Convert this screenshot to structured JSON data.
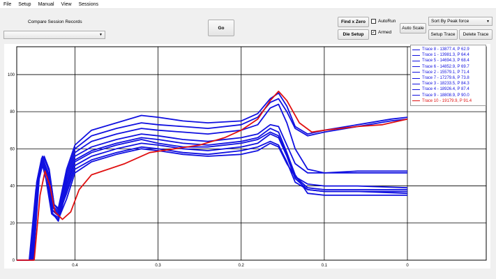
{
  "menu": [
    "File",
    "Setup",
    "Manual",
    "View",
    "Sessions"
  ],
  "toolbar": {
    "compare_label": "Compare Session Records",
    "session_select_value": "",
    "go_label": "Go",
    "find_zero_label": "Find x Zero",
    "die_setup_label": "Die Setup",
    "autorun_label": "AutoRun",
    "autorun_checked": false,
    "armed_label": "Armed",
    "armed_checked": true,
    "auto_scale_label": "Auto Scale",
    "sort_value": "Sort By Peak force",
    "setup_trace_label": "Setup Trace",
    "delete_trace_label": "Delete Trace"
  },
  "chart_data": {
    "type": "line",
    "xlim": [
      0.47,
      0.0
    ],
    "ylim": [
      0,
      115
    ],
    "x_ticks": [
      0.4,
      0.3,
      0.2,
      0.1,
      0
    ],
    "x_tick_labels": [
      "0.4",
      "0.3",
      "0.2",
      "0.1",
      "0"
    ],
    "y_ticks": [
      0,
      20,
      40,
      60,
      80,
      100
    ],
    "grid": true,
    "legend_placement": "top-right",
    "colors": {
      "blue": "#1010e0",
      "red": "#e01010"
    },
    "series": [
      {
        "name": "Trace 8 - 13877.4, P 62.9",
        "color": "#1010e0",
        "points": [
          [
            0.47,
            0
          ],
          [
            0.455,
            0
          ],
          [
            0.447,
            38
          ],
          [
            0.44,
            53
          ],
          [
            0.435,
            44
          ],
          [
            0.428,
            25
          ],
          [
            0.42,
            22
          ],
          [
            0.41,
            33
          ],
          [
            0.4,
            47
          ],
          [
            0.38,
            53
          ],
          [
            0.35,
            57
          ],
          [
            0.32,
            60
          ],
          [
            0.3,
            59
          ],
          [
            0.27,
            57
          ],
          [
            0.24,
            56
          ],
          [
            0.2,
            57
          ],
          [
            0.18,
            59
          ],
          [
            0.165,
            63
          ],
          [
            0.155,
            61
          ],
          [
            0.145,
            52
          ],
          [
            0.135,
            45
          ],
          [
            0.12,
            41
          ],
          [
            0.1,
            40
          ],
          [
            0.06,
            40
          ],
          [
            0.0,
            39
          ]
        ]
      },
      {
        "name": "Trace 1 - 13981.3, P 64.4",
        "color": "#1010e0",
        "points": [
          [
            0.47,
            0
          ],
          [
            0.454,
            0
          ],
          [
            0.446,
            40
          ],
          [
            0.44,
            54
          ],
          [
            0.434,
            46
          ],
          [
            0.428,
            27
          ],
          [
            0.42,
            24
          ],
          [
            0.41,
            36
          ],
          [
            0.4,
            49
          ],
          [
            0.38,
            54
          ],
          [
            0.35,
            58
          ],
          [
            0.32,
            61
          ],
          [
            0.3,
            60
          ],
          [
            0.27,
            58
          ],
          [
            0.24,
            57
          ],
          [
            0.2,
            59
          ],
          [
            0.18,
            61
          ],
          [
            0.165,
            64
          ],
          [
            0.155,
            62
          ],
          [
            0.145,
            53
          ],
          [
            0.135,
            42
          ],
          [
            0.12,
            38
          ],
          [
            0.1,
            37
          ],
          [
            0.06,
            37
          ],
          [
            0.0,
            36
          ]
        ]
      },
      {
        "name": "Trace 5 - 14694.3, P 68.4",
        "color": "#1010e0",
        "points": [
          [
            0.47,
            0
          ],
          [
            0.453,
            0
          ],
          [
            0.446,
            42
          ],
          [
            0.44,
            55
          ],
          [
            0.434,
            47
          ],
          [
            0.428,
            26
          ],
          [
            0.42,
            21
          ],
          [
            0.41,
            38
          ],
          [
            0.4,
            51
          ],
          [
            0.38,
            56
          ],
          [
            0.35,
            60
          ],
          [
            0.32,
            63
          ],
          [
            0.3,
            62
          ],
          [
            0.27,
            60
          ],
          [
            0.24,
            59
          ],
          [
            0.2,
            61
          ],
          [
            0.18,
            63
          ],
          [
            0.165,
            68
          ],
          [
            0.155,
            66
          ],
          [
            0.145,
            56
          ],
          [
            0.135,
            44
          ],
          [
            0.12,
            38
          ],
          [
            0.1,
            37
          ],
          [
            0.06,
            37
          ],
          [
            0.0,
            37
          ]
        ]
      },
      {
        "name": "Trace 6 - 14852.9, P 69.7",
        "color": "#1010e0",
        "points": [
          [
            0.47,
            0
          ],
          [
            0.452,
            0
          ],
          [
            0.445,
            41
          ],
          [
            0.439,
            52
          ],
          [
            0.433,
            45
          ],
          [
            0.427,
            25
          ],
          [
            0.42,
            23
          ],
          [
            0.41,
            40
          ],
          [
            0.4,
            53
          ],
          [
            0.38,
            58
          ],
          [
            0.35,
            62
          ],
          [
            0.32,
            65
          ],
          [
            0.3,
            63
          ],
          [
            0.27,
            61
          ],
          [
            0.24,
            61
          ],
          [
            0.2,
            63
          ],
          [
            0.18,
            65
          ],
          [
            0.165,
            69
          ],
          [
            0.155,
            67
          ],
          [
            0.145,
            57
          ],
          [
            0.135,
            45
          ],
          [
            0.12,
            39
          ],
          [
            0.1,
            38
          ],
          [
            0.06,
            38
          ],
          [
            0.0,
            38
          ]
        ]
      },
      {
        "name": "Trace 2 - 15579.1, P 71.4",
        "color": "#1010e0",
        "points": [
          [
            0.47,
            0
          ],
          [
            0.452,
            0
          ],
          [
            0.445,
            44
          ],
          [
            0.439,
            56
          ],
          [
            0.433,
            47
          ],
          [
            0.427,
            27
          ],
          [
            0.42,
            24
          ],
          [
            0.41,
            41
          ],
          [
            0.4,
            54
          ],
          [
            0.38,
            59
          ],
          [
            0.35,
            63
          ],
          [
            0.32,
            66
          ],
          [
            0.3,
            65
          ],
          [
            0.27,
            63
          ],
          [
            0.24,
            62
          ],
          [
            0.2,
            64
          ],
          [
            0.18,
            66
          ],
          [
            0.165,
            71
          ],
          [
            0.155,
            69
          ],
          [
            0.145,
            58
          ],
          [
            0.135,
            46
          ],
          [
            0.12,
            36
          ],
          [
            0.1,
            35
          ],
          [
            0.06,
            35
          ],
          [
            0.0,
            35
          ]
        ]
      },
      {
        "name": "Trace 7 - 17279.6, P 73.8",
        "color": "#1010e0",
        "points": [
          [
            0.47,
            0
          ],
          [
            0.451,
            0
          ],
          [
            0.444,
            42
          ],
          [
            0.438,
            53
          ],
          [
            0.432,
            46
          ],
          [
            0.426,
            28
          ],
          [
            0.42,
            25
          ],
          [
            0.41,
            43
          ],
          [
            0.4,
            56
          ],
          [
            0.38,
            61
          ],
          [
            0.35,
            65
          ],
          [
            0.32,
            68
          ],
          [
            0.3,
            67
          ],
          [
            0.27,
            65
          ],
          [
            0.24,
            64
          ],
          [
            0.2,
            66
          ],
          [
            0.18,
            68
          ],
          [
            0.165,
            73
          ],
          [
            0.155,
            72
          ],
          [
            0.145,
            62
          ],
          [
            0.135,
            52
          ],
          [
            0.12,
            47
          ],
          [
            0.1,
            47
          ],
          [
            0.06,
            47
          ],
          [
            0.0,
            47
          ]
        ]
      },
      {
        "name": "Trace 3 - 18233.5, P 84.3",
        "color": "#1010e0",
        "points": [
          [
            0.47,
            0
          ],
          [
            0.451,
            0
          ],
          [
            0.444,
            43
          ],
          [
            0.438,
            54
          ],
          [
            0.432,
            47
          ],
          [
            0.426,
            29
          ],
          [
            0.42,
            26
          ],
          [
            0.41,
            45
          ],
          [
            0.4,
            58
          ],
          [
            0.38,
            64
          ],
          [
            0.35,
            68
          ],
          [
            0.32,
            71
          ],
          [
            0.3,
            70
          ],
          [
            0.27,
            69
          ],
          [
            0.24,
            68
          ],
          [
            0.2,
            70
          ],
          [
            0.18,
            73
          ],
          [
            0.165,
            82
          ],
          [
            0.155,
            84
          ],
          [
            0.145,
            74
          ],
          [
            0.135,
            60
          ],
          [
            0.12,
            49
          ],
          [
            0.1,
            47
          ],
          [
            0.06,
            48
          ],
          [
            0.0,
            48
          ]
        ]
      },
      {
        "name": "Trace 4 - 18926.4, P 87.4",
        "color": "#1010e0",
        "points": [
          [
            0.47,
            0
          ],
          [
            0.45,
            0
          ],
          [
            0.443,
            44
          ],
          [
            0.437,
            55
          ],
          [
            0.431,
            48
          ],
          [
            0.425,
            30
          ],
          [
            0.42,
            27
          ],
          [
            0.41,
            47
          ],
          [
            0.4,
            60
          ],
          [
            0.38,
            67
          ],
          [
            0.35,
            71
          ],
          [
            0.32,
            74
          ],
          [
            0.3,
            73
          ],
          [
            0.27,
            72
          ],
          [
            0.24,
            71
          ],
          [
            0.2,
            73
          ],
          [
            0.18,
            77
          ],
          [
            0.165,
            85
          ],
          [
            0.155,
            87
          ],
          [
            0.145,
            80
          ],
          [
            0.135,
            71
          ],
          [
            0.12,
            67
          ],
          [
            0.1,
            69
          ],
          [
            0.06,
            72
          ],
          [
            0.02,
            75
          ],
          [
            0.0,
            76
          ]
        ]
      },
      {
        "name": "Trace 9 - 18808.9, P 90.0",
        "color": "#1010e0",
        "points": [
          [
            0.47,
            0
          ],
          [
            0.45,
            0
          ],
          [
            0.443,
            46
          ],
          [
            0.437,
            56
          ],
          [
            0.431,
            49
          ],
          [
            0.425,
            30
          ],
          [
            0.42,
            28
          ],
          [
            0.41,
            49
          ],
          [
            0.4,
            62
          ],
          [
            0.38,
            70
          ],
          [
            0.35,
            74
          ],
          [
            0.32,
            78
          ],
          [
            0.3,
            77
          ],
          [
            0.27,
            75
          ],
          [
            0.24,
            74
          ],
          [
            0.2,
            75
          ],
          [
            0.18,
            79
          ],
          [
            0.165,
            87
          ],
          [
            0.155,
            90
          ],
          [
            0.145,
            83
          ],
          [
            0.135,
            72
          ],
          [
            0.12,
            68
          ],
          [
            0.1,
            70
          ],
          [
            0.06,
            73
          ],
          [
            0.02,
            76
          ],
          [
            0.0,
            77
          ]
        ]
      },
      {
        "name": "Trace 10 - 19179.9, P 91.4",
        "color": "#e01010",
        "points": [
          [
            0.47,
            0
          ],
          [
            0.449,
            0
          ],
          [
            0.442,
            35
          ],
          [
            0.436,
            48
          ],
          [
            0.43,
            40
          ],
          [
            0.424,
            26
          ],
          [
            0.415,
            22
          ],
          [
            0.405,
            26
          ],
          [
            0.395,
            38
          ],
          [
            0.38,
            46
          ],
          [
            0.36,
            49
          ],
          [
            0.34,
            52
          ],
          [
            0.31,
            58
          ],
          [
            0.28,
            60
          ],
          [
            0.25,
            62
          ],
          [
            0.22,
            66
          ],
          [
            0.2,
            70
          ],
          [
            0.18,
            76
          ],
          [
            0.165,
            86
          ],
          [
            0.155,
            91
          ],
          [
            0.145,
            86
          ],
          [
            0.13,
            74
          ],
          [
            0.115,
            69
          ],
          [
            0.1,
            70
          ],
          [
            0.06,
            72
          ],
          [
            0.03,
            73
          ],
          [
            0.0,
            76
          ]
        ]
      }
    ]
  }
}
